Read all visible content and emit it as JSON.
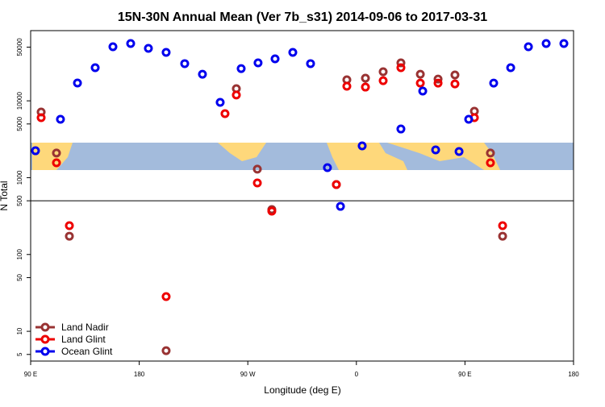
{
  "chart_data": {
    "type": "scatter",
    "title": "15N-30N Annual Mean (Ver 7b_s31)   2014-09-06 to 2017-03-31",
    "x_label": "Longitude (deg E)",
    "y_label": "N Total",
    "xlim": [
      90,
      540
    ],
    "xticks": [
      {
        "value": 90,
        "label": "90 E"
      },
      180,
      {
        "value": 270,
        "label": "90 W"
      },
      {
        "value": 360,
        "label": "0"
      },
      {
        "value": 450,
        "label": "90 E"
      },
      {
        "value": 540,
        "label": "180"
      }
    ],
    "ylim": [
      4.1,
      82000
    ],
    "y_log": true,
    "yticks": [
      5,
      10,
      50,
      100,
      500,
      1000,
      5000,
      10000,
      50000
    ],
    "reference_line": 500,
    "legend_position": "bottom-left",
    "series": [
      {
        "name": "Land Nadir",
        "color": "#993333",
        "x": [
          98.7,
          111.4,
          122.1,
          202.3,
          260.5,
          277.9,
          289.9,
          343.4,
          352.1,
          367.5,
          382.2,
          396.9,
          413,
          427.7,
          441.7,
          457.8,
          471.1,
          481.2
        ],
        "values": [
          7150,
          2090,
          173,
          5.6,
          14400,
          1290,
          384,
          813,
          18800,
          19700,
          23900,
          31200,
          22200,
          19200,
          21700,
          7330,
          2090,
          173
        ]
      },
      {
        "name": "Land Glint",
        "color": "#ee0000",
        "x": [
          98.7,
          111.4,
          122.1,
          202.3,
          251.1,
          260.5,
          277.9,
          289.9,
          343.4,
          352.1,
          367.5,
          382.2,
          396.9,
          413,
          427.7,
          441.7,
          457.8,
          471.1,
          481.2
        ],
        "values": [
          6040,
          1560,
          237,
          28.3,
          6810,
          11900,
          853,
          366,
          813,
          15500,
          15100,
          18300,
          27000,
          17000,
          17000,
          16600,
          6040,
          1560,
          237
        ]
      },
      {
        "name": "Ocean Glint",
        "color": "#0000ee",
        "x": [
          94,
          114.7,
          128.8,
          143.5,
          158.2,
          172.9,
          187.6,
          202.3,
          217.7,
          232.4,
          247.1,
          264.5,
          278.5,
          292.6,
          307.3,
          322,
          336,
          346.8,
          364.8,
          396.9,
          415,
          425.7,
          445.1,
          453.1,
          473.8,
          487.9,
          502.6,
          517.3,
          532
        ],
        "values": [
          2240,
          5750,
          17060,
          27000,
          50600,
          55700,
          48200,
          42700,
          30500,
          22200,
          9550,
          26300,
          31200,
          35200,
          42700,
          30500,
          1350,
          423,
          2590,
          4300,
          13400,
          2300,
          2190,
          5750,
          17000,
          27000,
          50600,
          55700,
          55700
        ]
      }
    ]
  }
}
